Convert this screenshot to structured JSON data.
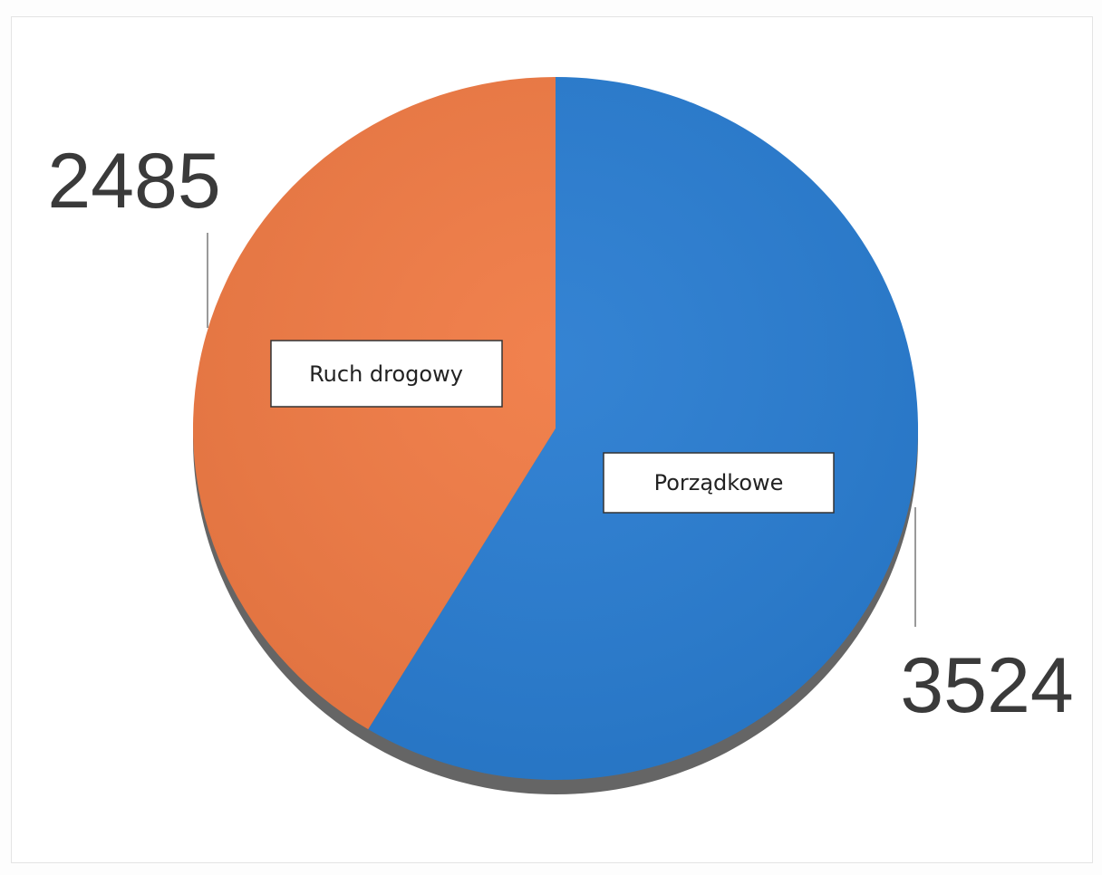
{
  "chart_data": {
    "type": "pie",
    "title": "",
    "start_angle_deg": 0,
    "direction": "clockwise",
    "legend": "none",
    "slices": [
      {
        "name": "Porządkowe",
        "value": 3524,
        "label": "3524",
        "color": "#2a7dd1"
      },
      {
        "name": "Ruch drogowy",
        "value": 2485,
        "label": "2485",
        "color": "#f07b45"
      }
    ]
  }
}
